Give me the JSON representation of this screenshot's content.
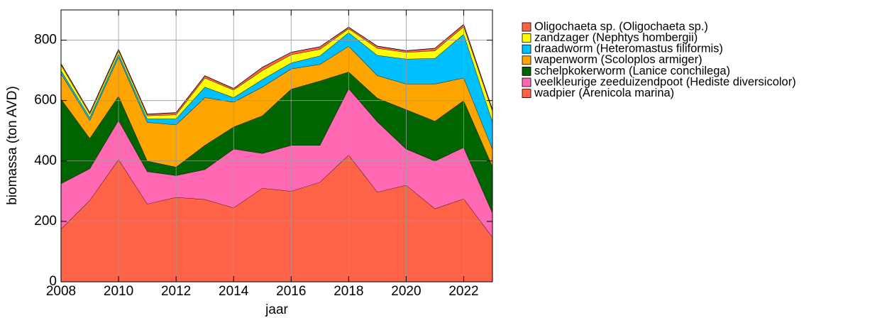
{
  "chart_data": {
    "type": "stacked_area",
    "x_label": "jaar",
    "y_label": "biomassa (ton AVD)",
    "x": [
      2008,
      2009,
      2010,
      2011,
      2012,
      2013,
      2014,
      2015,
      2016,
      2017,
      2018,
      2019,
      2020,
      2021,
      2022,
      2023
    ],
    "xlim": [
      2008,
      2023
    ],
    "xticks": [
      2008,
      2010,
      2012,
      2014,
      2016,
      2018,
      2020,
      2022
    ],
    "ylim": [
      0,
      900
    ],
    "yticks": [
      0,
      200,
      400,
      600,
      800
    ],
    "grid": true,
    "legend": "outside right",
    "series": [
      {
        "name": "wadpier (Arenicola marina)",
        "color": "#ff6347",
        "values": [
          175,
          270,
          405,
          258,
          280,
          273,
          245,
          310,
          300,
          330,
          420,
          297,
          320,
          242,
          275,
          148
        ]
      },
      {
        "name": "veelkleurige zeeduizendpoot (Hediste diversicolor)",
        "color": "#ff69b4",
        "values": [
          150,
          105,
          130,
          107,
          72,
          99,
          195,
          115,
          152,
          122,
          220,
          233,
          120,
          158,
          170,
          80
        ]
      },
      {
        "name": "schelpkokerworm (Lanice conchilega)",
        "color": "#006400",
        "values": [
          280,
          100,
          80,
          35,
          28,
          80,
          73,
          125,
          186,
          213,
          55,
          78,
          130,
          132,
          155,
          154
        ]
      },
      {
        "name": "wapenworm (Scoloplos armiger)",
        "color": "#ffa500",
        "values": [
          85,
          60,
          130,
          128,
          140,
          158,
          82,
          95,
          67,
          55,
          85,
          75,
          85,
          123,
          75,
          58
        ]
      },
      {
        "name": "draadworm (Heteromastus filiformis)",
        "color": "#00bfff",
        "values": [
          10,
          10,
          10,
          12,
          20,
          35,
          15,
          25,
          20,
          28,
          45,
          67,
          83,
          85,
          145,
          90
        ]
      },
      {
        "name": "zandzager (Nephtys hombergii)",
        "color": "#ffff00",
        "values": [
          18,
          10,
          10,
          10,
          13,
          30,
          25,
          30,
          27,
          22,
          13,
          23,
          22,
          25,
          25,
          35
        ]
      },
      {
        "name": "Oligochaeta sp. (Oligochaeta sp.)",
        "color": "#ff6347",
        "values": [
          4,
          5,
          5,
          5,
          7,
          7,
          5,
          10,
          8,
          8,
          5,
          7,
          5,
          8,
          7,
          5
        ]
      }
    ]
  }
}
